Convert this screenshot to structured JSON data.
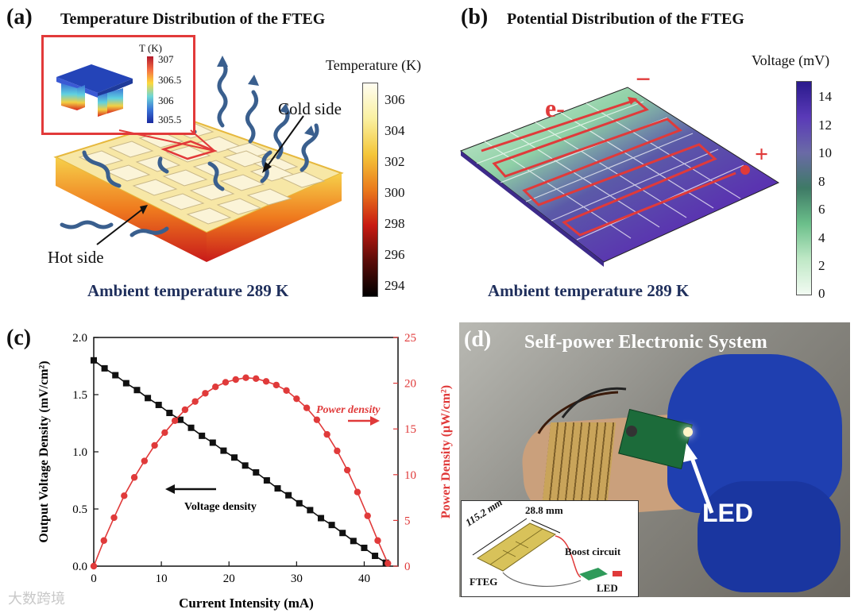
{
  "panel_a": {
    "label": "(a)",
    "title": "Temperature Distribution of the FTEG",
    "colorbar_title": "Temperature (K)",
    "colorbar_ticks": [
      "306",
      "304",
      "302",
      "300",
      "298",
      "296",
      "294"
    ],
    "inset_title": "T (K)",
    "inset_ticks": [
      "307",
      "306.5",
      "306",
      "305.5"
    ],
    "cold_side_label": "Cold side",
    "hot_side_label": "Hot side",
    "ambient_label": "Ambient temperature 289 K"
  },
  "panel_b": {
    "label": "(b)",
    "title": "Potential Distribution of the FTEG",
    "colorbar_title": "Voltage (mV)",
    "colorbar_ticks": [
      "14",
      "12",
      "10",
      "8",
      "6",
      "4",
      "2",
      "0"
    ],
    "electron_label": "e-",
    "minus_sign": "−",
    "plus_sign": "+",
    "ambient_label": "Ambient temperature 289 K"
  },
  "panel_c": {
    "label": "(c)",
    "xlabel": "Current Intensity (mA)",
    "ylabel_left": "Output Voltage Density (mV/cm²)",
    "ylabel_right": "Power Density (μW/cm²)",
    "annotation_power": "Power density",
    "annotation_voltage": "Voltage density",
    "x_ticks": [
      "0",
      "10",
      "20",
      "30",
      "40"
    ],
    "y_left_ticks": [
      "0.0",
      "0.5",
      "1.0",
      "1.5",
      "2.0"
    ],
    "y_right_ticks": [
      "0",
      "5",
      "10",
      "15",
      "20",
      "25"
    ]
  },
  "panel_d": {
    "label": "(d)",
    "title": "Self-power Electronic System",
    "led_label": "LED",
    "inset_dim_1": "115.2 mm",
    "inset_dim_2": "28.8 mm",
    "inset_boost": "Boost circuit",
    "inset_fteg": "FTEG",
    "inset_led": "LED"
  },
  "watermark": "大数跨境",
  "colors": {
    "voltage_series": "#111111",
    "power_series": "#e03a3a",
    "navy_text": "#1f2f5c",
    "pcb_green": "#1c6b3a",
    "glove_blue": "#1f3fb0"
  },
  "chart_data": {
    "type": "line",
    "xlabel": "Current Intensity (mA)",
    "xlim": [
      0,
      45
    ],
    "y_left": {
      "label": "Output Voltage Density (mV/cm²)",
      "lim": [
        0,
        2.0
      ]
    },
    "y_right": {
      "label": "Power Density (μW/cm²)",
      "lim": [
        0,
        25
      ]
    },
    "series": [
      {
        "name": "Voltage density",
        "axis": "left",
        "marker": "square",
        "color": "#111111",
        "x": [
          0,
          1.6,
          3.2,
          4.8,
          6.4,
          8.0,
          9.6,
          11.2,
          12.8,
          14.4,
          16.0,
          17.6,
          19.2,
          20.8,
          22.4,
          24.0,
          25.6,
          27.2,
          28.8,
          30.4,
          32.0,
          33.6,
          35.2,
          36.8,
          38.4,
          40.0,
          41.6,
          43.2
        ],
        "y": [
          1.8,
          1.73,
          1.67,
          1.6,
          1.54,
          1.47,
          1.41,
          1.34,
          1.28,
          1.21,
          1.14,
          1.08,
          1.01,
          0.95,
          0.88,
          0.82,
          0.75,
          0.68,
          0.62,
          0.55,
          0.49,
          0.42,
          0.36,
          0.29,
          0.22,
          0.16,
          0.09,
          0.03
        ]
      },
      {
        "name": "Power density",
        "axis": "right",
        "marker": "circle",
        "color": "#e03a3a",
        "x": [
          0,
          1.5,
          3,
          4.5,
          6,
          7.5,
          9,
          10.5,
          12,
          13.5,
          15,
          16.5,
          18,
          19.5,
          21,
          22.5,
          24,
          25.5,
          27,
          28.5,
          30,
          31.5,
          33,
          34.5,
          36,
          37.5,
          39,
          40.5,
          42,
          43.5
        ],
        "y": [
          0,
          2.8,
          5.3,
          7.7,
          9.7,
          11.5,
          13.2,
          14.6,
          15.9,
          17.1,
          18.0,
          18.9,
          19.6,
          20.1,
          20.4,
          20.6,
          20.5,
          20.2,
          19.8,
          19.2,
          18.3,
          17.3,
          16.0,
          14.4,
          12.6,
          10.5,
          8.1,
          5.5,
          2.8,
          0.3
        ]
      }
    ]
  }
}
